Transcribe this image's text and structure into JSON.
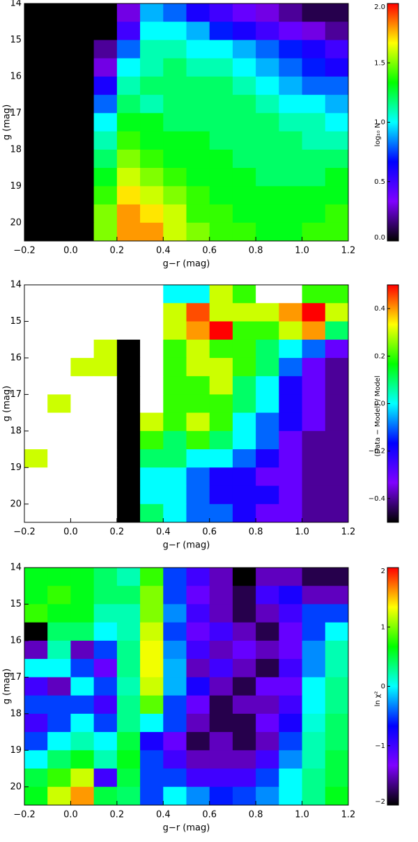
{
  "chart_data": [
    {
      "type": "heatmap",
      "x_label": "g−r (mag)",
      "y_label": "g (mag)",
      "colorbar_label": "log₁₀ N",
      "x": [
        -0.15,
        -0.05,
        0.05,
        0.15,
        0.25,
        0.35,
        0.45,
        0.55,
        0.65,
        0.75,
        0.85,
        0.95,
        1.05,
        1.15
      ],
      "y": [
        14.25,
        14.75,
        15.25,
        15.75,
        16.25,
        16.75,
        17.25,
        17.75,
        18.25,
        18.75,
        19.25,
        19.75,
        20.25
      ],
      "values": [
        [
          0,
          0,
          0,
          0,
          0.3,
          0.9,
          0.8,
          0.6,
          0.5,
          0.4,
          0.3,
          0.2,
          0.1,
          0.1
        ],
        [
          0,
          0,
          0,
          0,
          0.5,
          1.0,
          1.0,
          0.9,
          0.7,
          0.6,
          0.5,
          0.4,
          0.3,
          0.2
        ],
        [
          0,
          0,
          0,
          0.2,
          0.8,
          1.1,
          1.1,
          1.0,
          1.0,
          0.9,
          0.8,
          0.7,
          0.6,
          0.5
        ],
        [
          0,
          0,
          0,
          0.3,
          1.0,
          1.1,
          1.2,
          1.1,
          1.1,
          1.0,
          0.9,
          0.8,
          0.7,
          0.6
        ],
        [
          0,
          0,
          0,
          0.6,
          1.1,
          1.2,
          1.2,
          1.2,
          1.2,
          1.1,
          1.0,
          0.9,
          0.8,
          0.8
        ],
        [
          0,
          0,
          0,
          0.8,
          1.2,
          1.1,
          1.2,
          1.2,
          1.2,
          1.2,
          1.1,
          1.0,
          1.0,
          0.9
        ],
        [
          0,
          0,
          0,
          1.0,
          1.3,
          1.3,
          1.2,
          1.2,
          1.2,
          1.2,
          1.2,
          1.1,
          1.1,
          1.0
        ],
        [
          0,
          0,
          0,
          1.1,
          1.4,
          1.3,
          1.3,
          1.3,
          1.2,
          1.2,
          1.2,
          1.2,
          1.1,
          1.1
        ],
        [
          0,
          0,
          0,
          1.2,
          1.5,
          1.4,
          1.3,
          1.3,
          1.3,
          1.2,
          1.2,
          1.2,
          1.2,
          1.2
        ],
        [
          0,
          0,
          0,
          1.3,
          1.6,
          1.5,
          1.4,
          1.3,
          1.3,
          1.3,
          1.2,
          1.2,
          1.2,
          1.3
        ],
        [
          0,
          0,
          0,
          1.4,
          1.7,
          1.6,
          1.5,
          1.4,
          1.3,
          1.3,
          1.3,
          1.3,
          1.3,
          1.3
        ],
        [
          0,
          0,
          0,
          1.5,
          1.8,
          1.7,
          1.6,
          1.4,
          1.4,
          1.3,
          1.3,
          1.3,
          1.3,
          1.4
        ],
        [
          0,
          0,
          0,
          1.5,
          1.8,
          1.8,
          1.6,
          1.5,
          1.4,
          1.4,
          1.3,
          1.3,
          1.4,
          1.4
        ]
      ],
      "xlim": [
        -0.2,
        1.2
      ],
      "ylim": [
        20.5,
        14
      ],
      "xticks": [
        {
          "value": -0.2,
          "label": "−0.2"
        },
        {
          "value": 0,
          "label": "0.0"
        },
        0.2,
        0.4,
        0.6,
        0.8,
        {
          "value": 1,
          "label": "1.0"
        },
        1.2
      ],
      "yticks": [
        14,
        15,
        16,
        17,
        18,
        19,
        20
      ],
      "clim": [
        0,
        2
      ],
      "cticks": [
        {
          "value": 0,
          "label": "0.0"
        },
        0.5,
        {
          "value": 1,
          "label": "1.0"
        },
        1.5,
        {
          "value": 2,
          "label": "2.0"
        }
      ],
      "colormap": [
        "#000000",
        "#7f00ff",
        "#0000ff",
        "#00ffff",
        "#00ff00",
        "#ffff00",
        "#ff0000"
      ]
    },
    {
      "type": "heatmap",
      "x_label": "g−r (mag)",
      "y_label": "g (mag)",
      "colorbar_label": "(Data − Model) / Model",
      "x": [
        -0.15,
        -0.05,
        0.05,
        0.15,
        0.25,
        0.35,
        0.45,
        0.55,
        0.65,
        0.75,
        0.85,
        0.95,
        1.05,
        1.15
      ],
      "y": [
        14.25,
        14.75,
        15.25,
        15.75,
        16.25,
        16.75,
        17.25,
        17.75,
        18.25,
        18.75,
        19.25,
        19.75,
        20.25
      ],
      "values": [
        [
          0.6,
          0.6,
          0.6,
          0.6,
          0.6,
          0.6,
          0.0,
          0.0,
          0.3,
          0.2,
          0.6,
          0.6,
          0.2,
          0.2
        ],
        [
          0.6,
          0.6,
          0.6,
          0.6,
          0.6,
          0.6,
          0.3,
          0.45,
          0.3,
          0.3,
          0.3,
          0.4,
          0.5,
          0.3
        ],
        [
          0.6,
          0.6,
          0.6,
          0.6,
          0.6,
          0.6,
          0.3,
          0.4,
          0.5,
          0.2,
          0.2,
          0.3,
          0.4,
          0.1
        ],
        [
          0.6,
          0.6,
          0.6,
          0.3,
          -0.5,
          0.6,
          0.2,
          0.3,
          0.2,
          0.2,
          0.1,
          0.0,
          -0.1,
          -0.3
        ],
        [
          0.6,
          0.6,
          0.3,
          0.3,
          -0.5,
          0.6,
          0.2,
          0.3,
          0.3,
          0.2,
          0.1,
          -0.1,
          -0.3,
          -0.4
        ],
        [
          0.6,
          0.6,
          0.6,
          0.6,
          -0.5,
          0.6,
          0.2,
          0.2,
          0.3,
          0.1,
          0.0,
          -0.2,
          -0.3,
          -0.4
        ],
        [
          0.6,
          0.3,
          0.6,
          0.6,
          -0.5,
          0.6,
          0.2,
          0.2,
          0.2,
          0.1,
          0.0,
          -0.2,
          -0.3,
          -0.4
        ],
        [
          0.6,
          0.6,
          0.6,
          0.6,
          -0.5,
          0.3,
          0.2,
          0.3,
          0.2,
          0.0,
          -0.1,
          -0.2,
          -0.3,
          -0.4
        ],
        [
          0.6,
          0.6,
          0.6,
          0.6,
          -0.5,
          0.2,
          0.1,
          0.2,
          0.1,
          0.0,
          -0.1,
          -0.3,
          -0.4,
          -0.4
        ],
        [
          0.3,
          0.6,
          0.6,
          0.6,
          -0.5,
          0.1,
          0.1,
          0.0,
          0.0,
          -0.1,
          -0.2,
          -0.3,
          -0.4,
          -0.4
        ],
        [
          0.6,
          0.6,
          0.6,
          0.6,
          -0.5,
          0.0,
          0.0,
          -0.1,
          -0.2,
          -0.2,
          -0.3,
          -0.3,
          -0.4,
          -0.4
        ],
        [
          0.6,
          0.6,
          0.6,
          0.6,
          -0.5,
          0.0,
          0.0,
          -0.1,
          -0.2,
          -0.2,
          -0.2,
          -0.3,
          -0.4,
          -0.4
        ],
        [
          0.6,
          0.6,
          0.6,
          0.6,
          -0.5,
          0.1,
          0.0,
          -0.1,
          -0.1,
          -0.2,
          -0.3,
          -0.3,
          -0.4,
          -0.4
        ]
      ],
      "xlim": [
        -0.2,
        1.2
      ],
      "ylim": [
        20.5,
        14
      ],
      "xticks": [
        {
          "value": -0.2,
          "label": "−0.2"
        },
        {
          "value": 0,
          "label": "0.0"
        },
        0.2,
        0.4,
        0.6,
        0.8,
        {
          "value": 1,
          "label": "1.0"
        },
        1.2
      ],
      "yticks": [
        14,
        15,
        16,
        17,
        18,
        19,
        20
      ],
      "clim": [
        -0.5,
        0.5
      ],
      "cticks": [
        {
          "value": -0.4,
          "label": "−0.4"
        },
        {
          "value": -0.2,
          "label": "−0.2"
        },
        {
          "value": 0,
          "label": "0.0"
        },
        0.2,
        0.4
      ],
      "colormap": [
        "#000000",
        "#7f00ff",
        "#0000ff",
        "#00ffff",
        "#00ff00",
        "#ffff00",
        "#ff0000"
      ],
      "over_color": "#ffffff"
    },
    {
      "type": "heatmap",
      "x_label": "g−r (mag)",
      "y_label": "g (mag)",
      "colorbar_label": "ln χ²",
      "x": [
        -0.15,
        -0.05,
        0.05,
        0.15,
        0.25,
        0.35,
        0.45,
        0.55,
        0.65,
        0.75,
        0.85,
        0.95,
        1.05,
        1.15
      ],
      "y": [
        14.25,
        14.75,
        15.25,
        15.75,
        16.25,
        16.75,
        17.25,
        17.75,
        18.25,
        18.75,
        19.25,
        19.75,
        20.25
      ],
      "values": [
        [
          0.6,
          0.6,
          0.6,
          0.4,
          0.2,
          0.8,
          -0.5,
          -1,
          -1.5,
          -2,
          -1.5,
          -1.5,
          -1.8,
          -1.8
        ],
        [
          0.6,
          0.8,
          0.6,
          0.4,
          0.4,
          1.0,
          -0.5,
          -1.2,
          -1.5,
          -1.8,
          -1,
          -0.8,
          -1.5,
          -1.5
        ],
        [
          0.8,
          0.6,
          0.6,
          0.2,
          0.2,
          1.0,
          -0.3,
          -1,
          -1.5,
          -1.8,
          -1.5,
          -1,
          -0.5,
          -0.5
        ],
        [
          -2,
          0.4,
          0.4,
          0,
          0.2,
          1.2,
          -0.5,
          -1.2,
          -1,
          -1.5,
          -1.8,
          -1.2,
          -0.5,
          0
        ],
        [
          -1.5,
          0.2,
          -1.5,
          -0.5,
          0.3,
          1.3,
          -0.3,
          -1,
          -1.5,
          -1.2,
          -1.5,
          -1.2,
          -0.3,
          0.2
        ],
        [
          0,
          0,
          -0.5,
          -1.2,
          0.3,
          1.3,
          -0.2,
          -1.5,
          -1,
          -1.5,
          -1.8,
          -1,
          -0.3,
          0.2
        ],
        [
          -1,
          -1.5,
          0,
          -0.5,
          0.2,
          1.2,
          -0.2,
          -0.8,
          -1.5,
          -1.8,
          -1.2,
          -1.2,
          0,
          0.3
        ],
        [
          -0.5,
          -0.5,
          -0.5,
          -1,
          0.3,
          0.9,
          -0.5,
          -1.2,
          -1.8,
          -1.5,
          -1.5,
          -1,
          0,
          0.3
        ],
        [
          -1,
          -0.5,
          0,
          -0.5,
          0.3,
          0,
          -0.5,
          -1.5,
          -1.8,
          -1.8,
          -1.2,
          -0.8,
          0.1,
          0.4
        ],
        [
          -0.5,
          0,
          0.2,
          0,
          0.5,
          -0.8,
          -1.2,
          -1.8,
          -1.5,
          -1.8,
          -1.5,
          -0.5,
          0.2,
          0.4
        ],
        [
          0,
          0.4,
          0.6,
          0.2,
          0.6,
          -0.5,
          -1,
          -1.5,
          -1.5,
          -1.5,
          -1,
          -0.3,
          0.2,
          0.5
        ],
        [
          0.5,
          0.8,
          1.2,
          -1,
          0.5,
          -0.5,
          -0.5,
          -1,
          -1,
          -1,
          -0.5,
          0,
          0.3,
          0.5
        ],
        [
          0.6,
          1.2,
          1.6,
          0.5,
          0.4,
          -0.5,
          0,
          -0.3,
          -0.6,
          -0.5,
          -0.3,
          0,
          0.3,
          0.6
        ]
      ],
      "xlim": [
        -0.2,
        1.2
      ],
      "ylim": [
        20.5,
        14
      ],
      "xticks": [
        {
          "value": -0.2,
          "label": "−0.2"
        },
        {
          "value": 0,
          "label": "0.0"
        },
        0.2,
        0.4,
        0.6,
        0.8,
        {
          "value": 1,
          "label": "1.0"
        },
        1.2
      ],
      "yticks": [
        14,
        15,
        16,
        17,
        18,
        19,
        20
      ],
      "clim": [
        -2,
        2
      ],
      "cticks": [
        {
          "value": -2,
          "label": "−2"
        },
        {
          "value": -1,
          "label": "−1"
        },
        0,
        1,
        2
      ],
      "colormap": [
        "#000000",
        "#7f00ff",
        "#0000ff",
        "#00ffff",
        "#00ff00",
        "#ffff00",
        "#ff0000"
      ]
    }
  ]
}
